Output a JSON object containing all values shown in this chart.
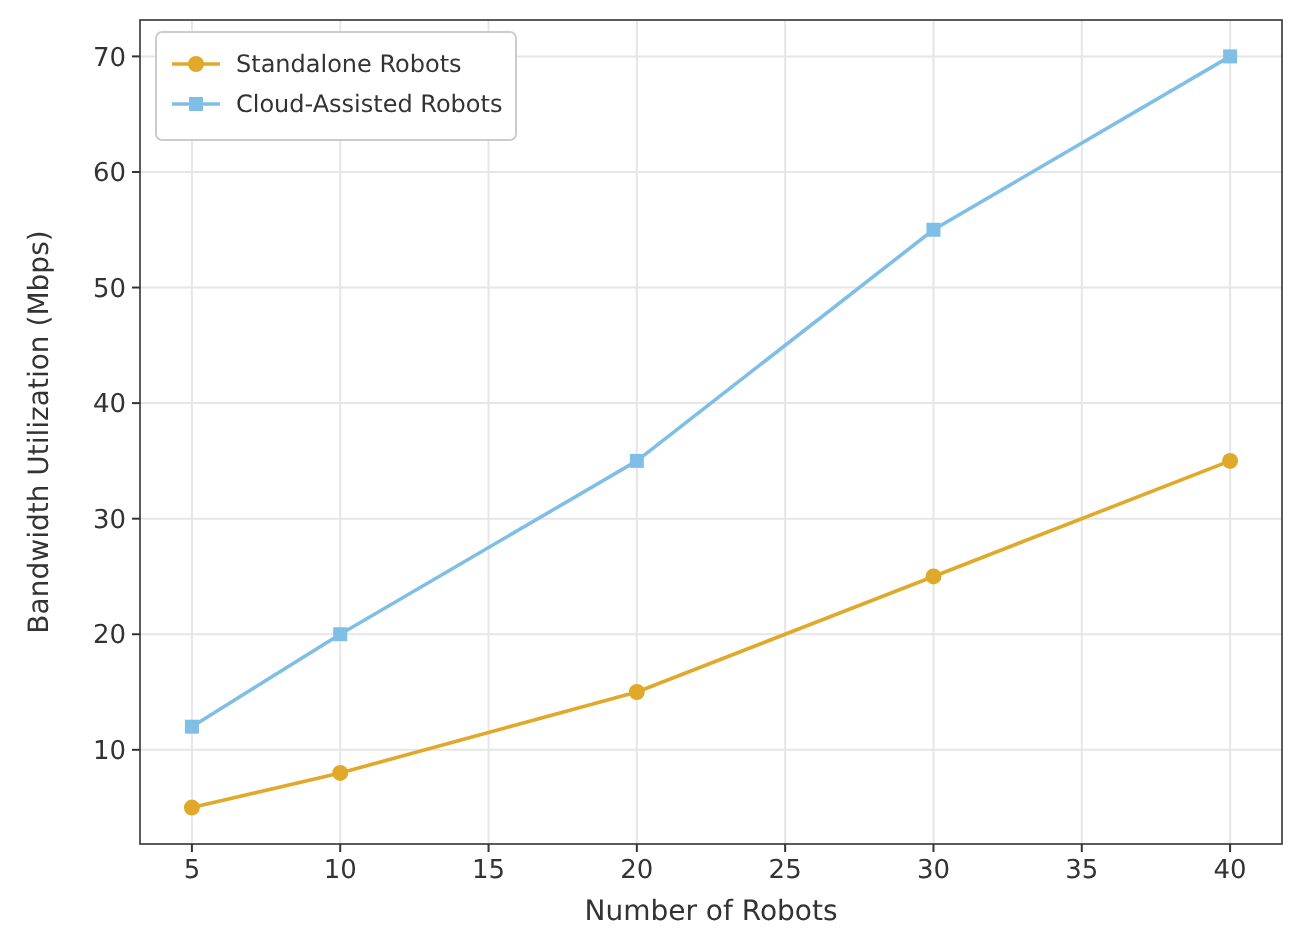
{
  "chart_data": {
    "type": "line",
    "xlabel": "Number of Robots",
    "ylabel": "Bandwidth Utilization (Mbps)",
    "x": [
      5,
      10,
      20,
      30,
      40
    ],
    "series": [
      {
        "name": "Standalone Robots",
        "color": "#e0a92a",
        "marker": "circle",
        "values": [
          5,
          8,
          15,
          25,
          35
        ]
      },
      {
        "name": "Cloud-Assisted Robots",
        "color": "#7fbfe6",
        "marker": "square",
        "values": [
          12,
          20,
          35,
          55,
          70
        ]
      }
    ],
    "xlim": [
      3.25,
      41.75
    ],
    "xticks": [
      5,
      10,
      15,
      20,
      25,
      30,
      35,
      40
    ],
    "ylim": [
      1.85,
      73.15
    ],
    "yticks": [
      10,
      20,
      30,
      40,
      50,
      60,
      70
    ],
    "grid": true,
    "legend": "top left",
    "line_style": "solid"
  }
}
